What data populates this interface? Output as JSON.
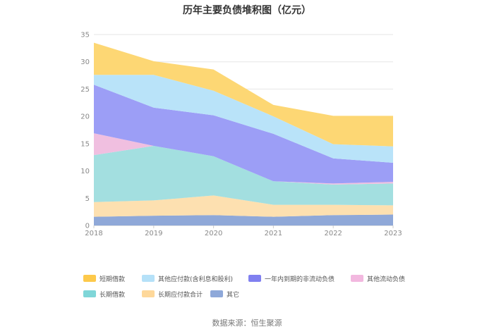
{
  "chart_data": {
    "type": "area",
    "stacked": true,
    "title": "历年主要负债堆积图（亿元）",
    "x": [
      "2018",
      "2019",
      "2020",
      "2021",
      "2022",
      "2023"
    ],
    "yticks": [
      "0",
      "5",
      "10",
      "15",
      "20",
      "25",
      "30",
      "35"
    ],
    "ylim": [
      0,
      35
    ],
    "grid": true,
    "legend_position": "bottom",
    "series": [
      {
        "name": "其它",
        "color": "#8fa8d8",
        "values": [
          1.6,
          1.8,
          1.9,
          1.6,
          1.9,
          2.0
        ]
      },
      {
        "name": "长期应付款合计",
        "color": "#fde0b0",
        "values": [
          2.7,
          2.8,
          3.6,
          2.2,
          1.9,
          1.7
        ]
      },
      {
        "name": "长期借款",
        "color": "#a3dfe0",
        "values": [
          8.6,
          10.0,
          7.2,
          4.3,
          3.7,
          4.0
        ]
      },
      {
        "name": "其他流动负债",
        "color": "#f0bfe0",
        "values": [
          4.0,
          0.0,
          0.0,
          0.0,
          0.2,
          0.3
        ]
      },
      {
        "name": "一年内到期的非流动负债",
        "color": "#9c9ef6",
        "values": [
          8.9,
          7.0,
          7.5,
          8.7,
          4.6,
          3.5
        ]
      },
      {
        "name": "其他应付款(含利息和股利)",
        "color": "#b9e3f9",
        "values": [
          1.8,
          6.0,
          4.5,
          3.2,
          2.6,
          3.0
        ]
      },
      {
        "name": "短期借款",
        "color": "#fdd774",
        "values": [
          5.9,
          2.5,
          3.9,
          2.1,
          5.2,
          5.6
        ]
      }
    ]
  },
  "legend": [
    {
      "label": "短期借款",
      "color": "#fdc94b"
    },
    {
      "label": "其他应付款(含利息和股利)",
      "color": "#b5e1f8"
    },
    {
      "label": "一年内到期的非流动负债",
      "color": "#8080f0"
    },
    {
      "label": "其他流动负债",
      "color": "#f2b8df"
    },
    {
      "label": "长期借款",
      "color": "#7fd6d8"
    },
    {
      "label": "长期应付款合计",
      "color": "#fed89a"
    },
    {
      "label": "其它",
      "color": "#8ea8d9"
    }
  ],
  "source": "数据来源：恒生聚源"
}
